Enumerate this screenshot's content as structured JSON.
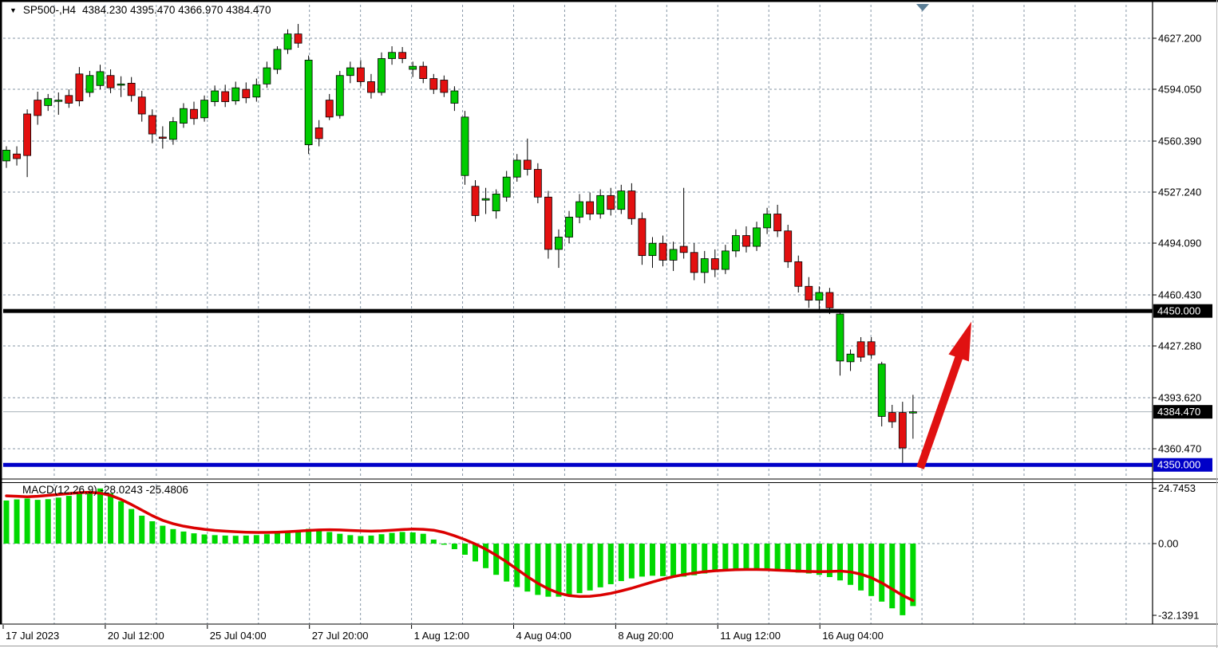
{
  "header": {
    "symbol_tf": "SP500-,H4",
    "ohlc": "4384.230 4395.470 4366.970 4384.470",
    "collapse_icon": "down-triangle-icon"
  },
  "ui": {
    "background": "#FFFFFF",
    "grid_color": "#8696A6",
    "bull_color": "#00CB00",
    "bear_color": "#E31010",
    "wick_color": "#000000",
    "hist_color": "#00D800",
    "signal_color": "#DB0000",
    "arrow_color": "#E01111",
    "marker_color": "#5B7E96",
    "axis_text_color": "#000000",
    "tag_text_color": "#FFFFFF",
    "resistance_line_color": "#000000",
    "support_line_color": "#0000C8",
    "current_price_line_color": "#A9B2BA"
  },
  "chart_data": [
    {
      "type": "candlestick",
      "title": "SP500-,H4",
      "timeframe": "H4",
      "ohlc_display": {
        "open": "4384.230",
        "high": "4395.470",
        "low": "4366.970",
        "close": "4384.470"
      },
      "y_axis_ticks": [
        "4627.200",
        "4594.050",
        "4560.390",
        "4527.240",
        "4494.090",
        "4460.430",
        "4427.280",
        "4393.620",
        "4360.470"
      ],
      "y_axis_values": [
        4627.2,
        4594.05,
        4560.39,
        4527.24,
        4494.09,
        4460.43,
        4427.28,
        4393.62,
        4360.47
      ],
      "x_axis_labels": [
        "17 Jul 2023",
        "20 Jul 12:00",
        "25 Jul 04:00",
        "27 Jul 20:00",
        "1 Aug 12:00",
        "4 Aug 04:00",
        "8 Aug 20:00",
        "11 Aug 12:00",
        "16 Aug 04:00"
      ],
      "ylim": [
        4340,
        4645
      ],
      "grid": "dashed",
      "levels": {
        "resistance": 4450.0,
        "support": 4350.0,
        "current_price": 4384.47
      },
      "price_tags": [
        {
          "label": "4450.000",
          "price": 4450.0,
          "bg": "#000000"
        },
        {
          "label": "4384.470",
          "price": 4384.47,
          "bg": "#000000"
        },
        {
          "label": "4350.000",
          "price": 4350.0,
          "bg": "#0000C8"
        }
      ],
      "annotation_arrow": {
        "from": {
          "bar": 87.7,
          "price": 4348
        },
        "to": {
          "bar": 92.6,
          "price": 4443
        },
        "color": "#E01111"
      },
      "candles": [
        [
          4547.5,
          4557.0,
          4543.0,
          4554.5
        ],
        [
          4552.0,
          4557.0,
          4544.5,
          4549.0
        ],
        [
          4578.0,
          4581.0,
          4537.0,
          4551.0
        ],
        [
          4587.0,
          4592.5,
          4571.0,
          4577.0
        ],
        [
          4583.5,
          4591.0,
          4580.0,
          4588.0
        ],
        [
          4586.5,
          4592.0,
          4577.5,
          4587.0
        ],
        [
          4590.0,
          4594.0,
          4582.0,
          4585.0
        ],
        [
          4604.0,
          4608.5,
          4583.0,
          4586.5
        ],
        [
          4592.0,
          4606.0,
          4589.0,
          4603.0
        ],
        [
          4596.5,
          4610.0,
          4594.0,
          4605.5
        ],
        [
          4603.0,
          4607.0,
          4591.5,
          4595.0
        ],
        [
          4597.0,
          4602.5,
          4589.0,
          4597.5
        ],
        [
          4598.0,
          4602.0,
          4586.0,
          4590.0
        ],
        [
          4589.0,
          4593.0,
          4573.0,
          4578.0
        ],
        [
          4577.0,
          4581.0,
          4559.0,
          4565.0
        ],
        [
          4563.0,
          4570.0,
          4555.5,
          4562.5
        ],
        [
          4561.5,
          4576.0,
          4558.0,
          4573.0
        ],
        [
          4572.0,
          4585.0,
          4569.0,
          4581.5
        ],
        [
          4581.0,
          4586.0,
          4571.0,
          4575.0
        ],
        [
          4575.5,
          4590.0,
          4573.0,
          4587.0
        ],
        [
          4586.0,
          4596.5,
          4583.0,
          4593.0
        ],
        [
          4592.5,
          4597.0,
          4582.5,
          4586.0
        ],
        [
          4586.5,
          4599.0,
          4584.0,
          4595.0
        ],
        [
          4594.0,
          4598.5,
          4585.0,
          4588.5
        ],
        [
          4589.0,
          4601.0,
          4586.0,
          4597.0
        ],
        [
          4597.5,
          4612.0,
          4595.0,
          4608.0
        ],
        [
          4607.0,
          4622.0,
          4604.0,
          4620.0
        ],
        [
          4620.0,
          4633.0,
          4617.0,
          4630.0
        ],
        [
          4630.0,
          4636.5,
          4621.0,
          4624.0
        ],
        [
          4558.0,
          4616.0,
          4552.0,
          4613.0
        ],
        [
          4569.0,
          4574.0,
          4557.0,
          4562.0
        ],
        [
          4587.0,
          4591.0,
          4574.0,
          4576.0
        ],
        [
          4577.0,
          4606.0,
          4575.0,
          4603.0
        ],
        [
          4603.0,
          4612.0,
          4598.0,
          4608.0
        ],
        [
          4608.0,
          4613.0,
          4596.0,
          4599.0
        ],
        [
          4599.0,
          4604.0,
          4588.0,
          4592.0
        ],
        [
          4592.0,
          4618.0,
          4590.0,
          4614.0
        ],
        [
          4614.0,
          4622.0,
          4610.0,
          4618.0
        ],
        [
          4618.0,
          4621.5,
          4611.0,
          4614.0
        ],
        [
          4607.0,
          4612.0,
          4602.0,
          4609.0
        ],
        [
          4609.0,
          4612.0,
          4598.0,
          4601.0
        ],
        [
          4601.0,
          4604.0,
          4591.0,
          4594.0
        ],
        [
          4600.0,
          4603.0,
          4589.0,
          4592.0
        ],
        [
          4585.0,
          4596.0,
          4580.0,
          4593.0
        ],
        [
          4538.0,
          4580.0,
          4532.0,
          4576.0
        ],
        [
          4531.0,
          4535.0,
          4508.0,
          4512.0
        ],
        [
          4522.0,
          4530.0,
          4513.0,
          4523.0
        ],
        [
          4515.0,
          4529.0,
          4510.0,
          4526.0
        ],
        [
          4524.0,
          4541.0,
          4521.0,
          4537.0
        ],
        [
          4537.0,
          4552.0,
          4534.0,
          4548.0
        ],
        [
          4548.0,
          4562.0,
          4538.0,
          4542.0
        ],
        [
          4542.0,
          4546.0,
          4520.0,
          4524.0
        ],
        [
          4524.0,
          4528.0,
          4484.0,
          4490.0
        ],
        [
          4490.0,
          4503.0,
          4478.0,
          4498.0
        ],
        [
          4498.0,
          4515.0,
          4494.0,
          4511.0
        ],
        [
          4511.0,
          4526.0,
          4507.0,
          4521.0
        ],
        [
          4521.0,
          4527.0,
          4509.0,
          4513.0
        ],
        [
          4513.0,
          4529.0,
          4510.0,
          4525.0
        ],
        [
          4525.0,
          4530.0,
          4512.0,
          4516.0
        ],
        [
          4516.0,
          4532.0,
          4513.0,
          4528.0
        ],
        [
          4528.0,
          4533.0,
          4506.0,
          4510.0
        ],
        [
          4510.0,
          4514.0,
          4480.0,
          4486.0
        ],
        [
          4486.0,
          4498.0,
          4478.0,
          4494.0
        ],
        [
          4494.0,
          4499.0,
          4479.0,
          4483.0
        ],
        [
          4483.0,
          4495.0,
          4476.0,
          4490.0
        ],
        [
          4492.0,
          4530.0,
          4484.0,
          4488.0
        ],
        [
          4488.0,
          4494.0,
          4470.0,
          4475.0
        ],
        [
          4475.0,
          4489.0,
          4468.0,
          4484.0
        ],
        [
          4484.0,
          4490.0,
          4472.0,
          4477.0
        ],
        [
          4477.0,
          4493.0,
          4474.0,
          4489.0
        ],
        [
          4489.0,
          4503.0,
          4485.0,
          4499.0
        ],
        [
          4499.0,
          4505.0,
          4488.0,
          4492.0
        ],
        [
          4492.0,
          4508.0,
          4489.0,
          4504.0
        ],
        [
          4504.0,
          4517.0,
          4500.0,
          4513.0
        ],
        [
          4513.0,
          4519.0,
          4498.0,
          4502.0
        ],
        [
          4502.0,
          4506.0,
          4478.0,
          4482.0
        ],
        [
          4482.0,
          4486.0,
          4462.0,
          4466.0
        ],
        [
          4466.0,
          4472.0,
          4452.0,
          4457.0
        ],
        [
          4457.0,
          4466.0,
          4450.0,
          4462.0
        ],
        [
          4462.0,
          4465.0,
          4448.0,
          4452.0
        ],
        [
          4417.5,
          4450.0,
          4408.0,
          4448.0
        ],
        [
          4417.0,
          4425.0,
          4411.0,
          4422.0
        ],
        [
          4430.0,
          4433.0,
          4417.0,
          4420.0
        ],
        [
          4430.0,
          4433.0,
          4419.0,
          4421.5
        ],
        [
          4381.5,
          4417.0,
          4375.0,
          4415.5
        ],
        [
          4384.0,
          4389.0,
          4374.0,
          4378.0
        ],
        [
          4384.0,
          4391.0,
          4350.6,
          4361.0
        ],
        [
          4384.2,
          4395.5,
          4367.0,
          4384.5
        ]
      ]
    },
    {
      "type": "bar",
      "subtype": "macd-histogram-with-signal",
      "label": "MACD(12,26,9) -28.0243 -25.4806",
      "macd_value": "-28.0243",
      "signal_value": "-25.4806",
      "y_axis_ticks": [
        "24.7453",
        "0.00",
        "-32.1391"
      ],
      "y_axis_values": [
        24.7453,
        0.0,
        -32.1391
      ],
      "ylim": [
        -32.1391,
        24.7453
      ],
      "histogram": [
        19.3,
        19.8,
        20.2,
        19.6,
        19.9,
        20.6,
        21.4,
        22.3,
        23.3,
        24.7,
        22.5,
        19.0,
        15.5,
        12.5,
        10.0,
        8.0,
        6.5,
        5.4,
        4.6,
        4.1,
        3.8,
        3.6,
        3.5,
        3.6,
        3.8,
        4.2,
        4.7,
        5.3,
        6.0,
        6.6,
        6.2,
        5.2,
        4.4,
        3.8,
        3.4,
        3.6,
        4.2,
        4.8,
        5.2,
        5.0,
        4.4,
        1.8,
        -0.5,
        -2.5,
        -5.0,
        -8.0,
        -11.0,
        -14.0,
        -17.0,
        -19.5,
        -21.5,
        -23.0,
        -23.8,
        -23.8,
        -23.2,
        -22.2,
        -21.0,
        -19.6,
        -18.2,
        -16.8,
        -15.6,
        -14.8,
        -14.4,
        -14.6,
        -15.0,
        -14.8,
        -14.2,
        -13.4,
        -12.6,
        -12.0,
        -11.5,
        -11.2,
        -11.2,
        -11.5,
        -12.0,
        -12.6,
        -13.0,
        -13.4,
        -14.0,
        -15.0,
        -16.5,
        -18.5,
        -21.0,
        -23.5,
        -26.0,
        -29.0,
        -32.1,
        -28.0
      ],
      "signal": [
        21.4,
        21.2,
        21.0,
        21.2,
        21.6,
        22.0,
        22.4,
        22.8,
        23.0,
        22.6,
        21.6,
        19.8,
        17.5,
        15.0,
        12.5,
        10.4,
        8.9,
        7.8,
        7.0,
        6.4,
        5.9,
        5.6,
        5.3,
        5.1,
        5.0,
        5.0,
        5.1,
        5.3,
        5.6,
        5.9,
        6.1,
        6.2,
        6.1,
        5.9,
        5.7,
        5.6,
        5.7,
        6.0,
        6.3,
        6.5,
        6.4,
        6.0,
        5.0,
        3.5,
        1.8,
        -0.2,
        -2.5,
        -5.2,
        -8.2,
        -11.5,
        -14.8,
        -17.8,
        -20.3,
        -22.2,
        -23.3,
        -23.7,
        -23.6,
        -23.1,
        -22.3,
        -21.2,
        -20.0,
        -18.6,
        -17.2,
        -15.9,
        -14.8,
        -13.9,
        -13.2,
        -12.6,
        -12.2,
        -11.9,
        -11.7,
        -11.6,
        -11.6,
        -11.7,
        -11.9,
        -12.1,
        -12.3,
        -12.5,
        -12.6,
        -12.5,
        -12.3,
        -12.7,
        -13.7,
        -15.3,
        -17.6,
        -20.4,
        -23.2,
        -25.5
      ]
    }
  ]
}
